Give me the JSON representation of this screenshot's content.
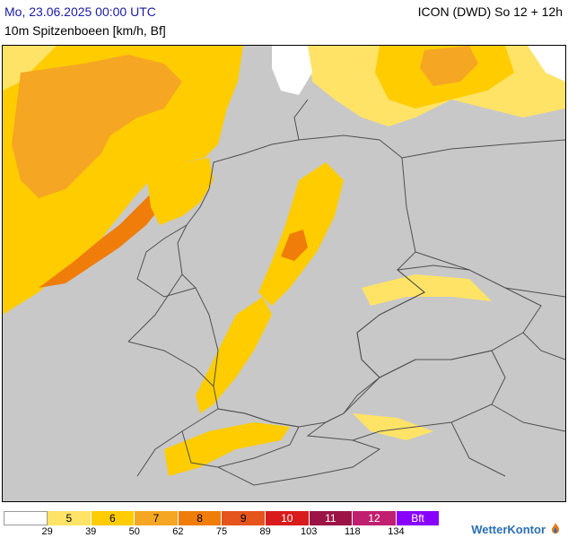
{
  "header": {
    "datetime": "Mo, 23.06.2025 00:00 UTC",
    "model_run": "ICON (DWD) So 12 + 12h",
    "parameter": "10m Spitzenboeen [km/h, Bf]"
  },
  "legend": {
    "boxes": [
      {
        "label": "",
        "color": "#ffffff"
      },
      {
        "label": "5",
        "color": "#ffe366"
      },
      {
        "label": "6",
        "color": "#ffcc00"
      },
      {
        "label": "7",
        "color": "#f5a623"
      },
      {
        "label": "8",
        "color": "#f07d0a"
      },
      {
        "label": "9",
        "color": "#e5541a"
      },
      {
        "label": "10",
        "color": "#d81c1c"
      },
      {
        "label": "11",
        "color": "#9c1446"
      },
      {
        "label": "12",
        "color": "#c11f70"
      },
      {
        "label": "Bft",
        "color": "#8800ff"
      }
    ],
    "ticks": [
      "29",
      "39",
      "50",
      "62",
      "75",
      "89",
      "103",
      "118",
      "134"
    ]
  },
  "logo": {
    "text": "WetterKontor",
    "icon": "wetterkontor-flame-icon"
  },
  "colors": {
    "land": "#c8c8c8",
    "border": "#505050"
  }
}
